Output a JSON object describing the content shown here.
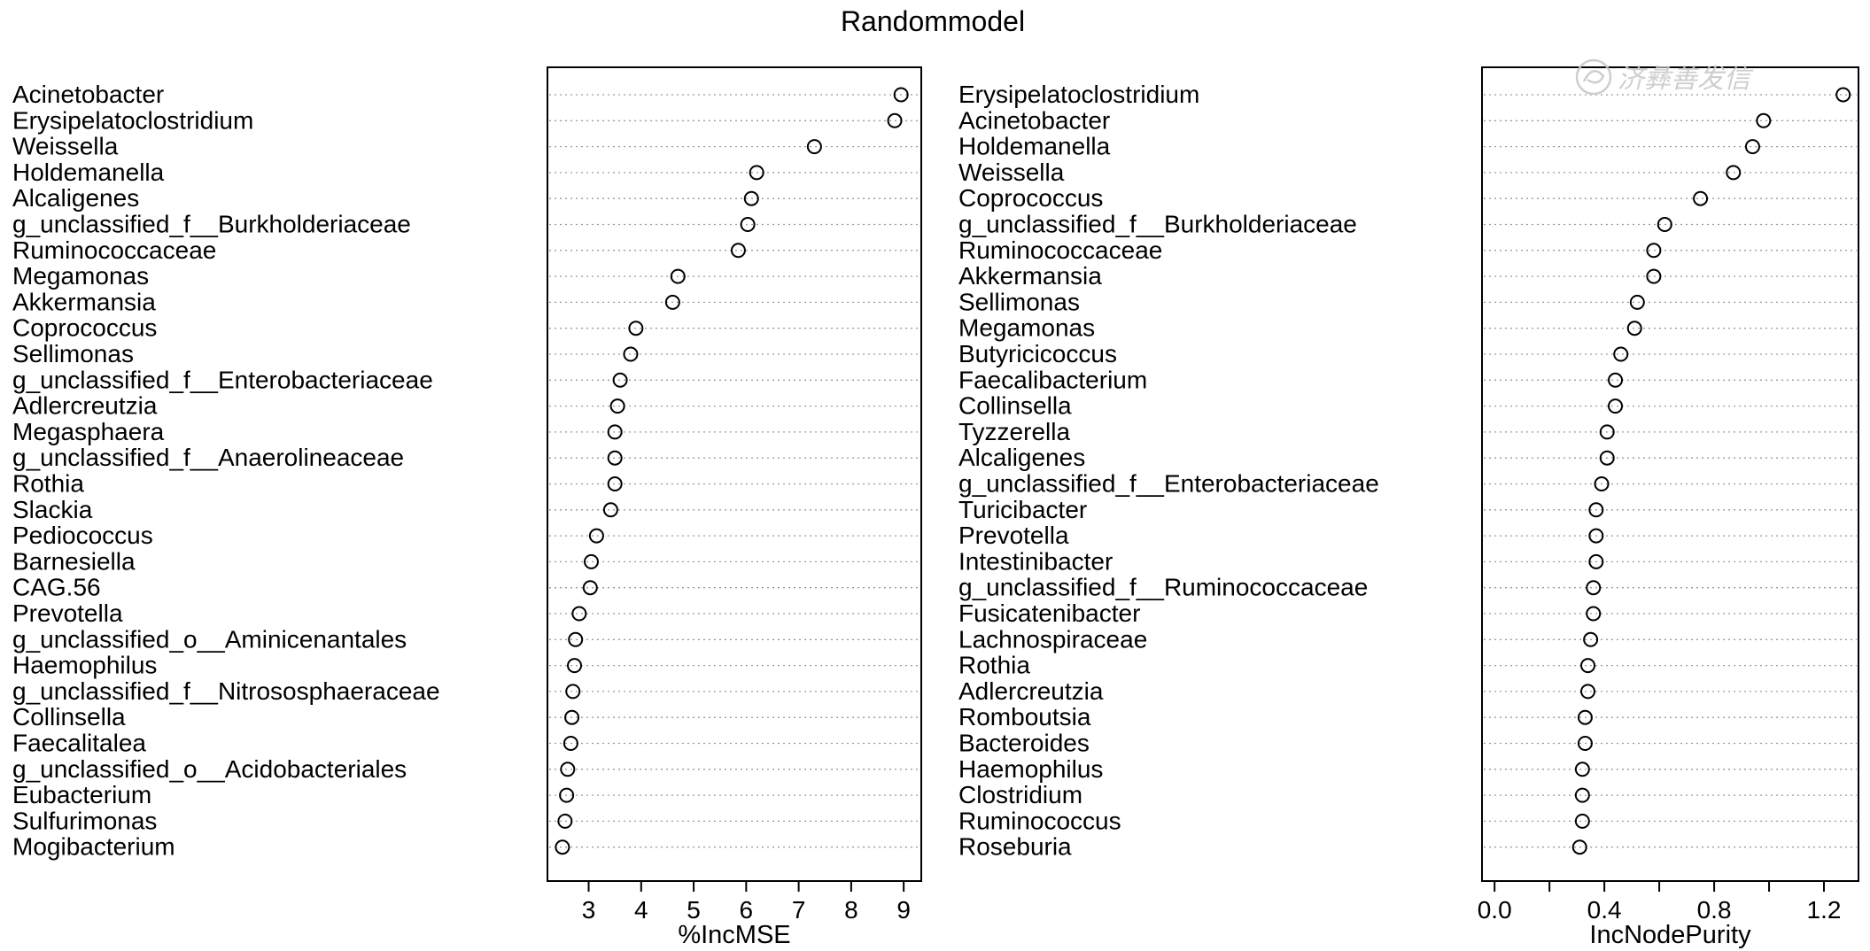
{
  "page": {
    "title": "Randommodel",
    "watermark_text": "济彝善发信"
  },
  "colors": {
    "ink": "#000000",
    "gridline": "#9a9a9a",
    "watermark": "#c9c9c9",
    "background": "#ffffff"
  },
  "chart_data": [
    {
      "type": "scatter",
      "subtype": "dotchart",
      "title": "Randommodel",
      "xlabel": "%IncMSE",
      "ylabel": "",
      "xlim": [
        2.35,
        9.2
      ],
      "xticks": [
        3,
        4,
        5,
        6,
        7,
        8,
        9
      ],
      "xtick_labels": [
        "3",
        "4",
        "5",
        "6",
        "7",
        "8",
        "9"
      ],
      "grid": "horizontal dotted",
      "categories": [
        "Acinetobacter",
        "Erysipelatoclostridium",
        "Weissella",
        "Holdemanella",
        "Alcaligenes",
        "g_unclassified_f__Burkholderiaceae",
        "Ruminococcaceae",
        "Megamonas",
        "Akkermansia",
        "Coprococcus",
        "Sellimonas",
        "g_unclassified_f__Enterobacteriaceae",
        "Adlercreutzia",
        "Megasphaera",
        "g_unclassified_f__Anaerolineaceae",
        "Rothia",
        "Slackia",
        "Pediococcus",
        "Barnesiella",
        "CAG.56",
        "Prevotella",
        "g_unclassified_o__Aminicenantales",
        "Haemophilus",
        "g_unclassified_f__Nitrososphaeraceae",
        "Collinsella",
        "Faecalitalea",
        "g_unclassified_o__Acidobacteriales",
        "Eubacterium",
        "Sulfurimonas",
        "Mogibacterium"
      ],
      "values": [
        8.95,
        8.83,
        7.3,
        6.2,
        6.1,
        6.03,
        5.85,
        4.7,
        4.6,
        3.9,
        3.8,
        3.6,
        3.55,
        3.5,
        3.5,
        3.5,
        3.42,
        3.15,
        3.05,
        3.03,
        2.82,
        2.75,
        2.73,
        2.7,
        2.68,
        2.66,
        2.6,
        2.58,
        2.55,
        2.5
      ]
    },
    {
      "type": "scatter",
      "subtype": "dotchart",
      "title": "",
      "xlabel": "IncNodePurity",
      "ylabel": "",
      "xlim": [
        -0.02,
        1.3
      ],
      "xticks": [
        0.0,
        0.2,
        0.4,
        0.6,
        0.8,
        1.0,
        1.2
      ],
      "xtick_labels": [
        "0.0",
        "",
        "0.4",
        "",
        "0.8",
        "",
        "1.2"
      ],
      "grid": "horizontal dotted",
      "categories": [
        "Erysipelatoclostridium",
        "Acinetobacter",
        "Holdemanella",
        "Weissella",
        "Coprococcus",
        "g_unclassified_f__Burkholderiaceae",
        "Ruminococcaceae",
        "Akkermansia",
        "Sellimonas",
        "Megamonas",
        "Butyricicoccus",
        "Faecalibacterium",
        "Collinsella",
        "Tyzzerella",
        "Alcaligenes",
        "g_unclassified_f__Enterobacteriaceae",
        "Turicibacter",
        "Prevotella",
        "Intestinibacter",
        "g_unclassified_f__Ruminococcaceae",
        "Fusicatenibacter",
        "Lachnospiraceae",
        "Rothia",
        "Adlercreutzia",
        "Romboutsia",
        "Bacteroides",
        "Haemophilus",
        "Clostridium",
        "Ruminococcus",
        "Roseburia"
      ],
      "values": [
        1.27,
        0.98,
        0.94,
        0.87,
        0.75,
        0.62,
        0.58,
        0.58,
        0.52,
        0.51,
        0.46,
        0.44,
        0.44,
        0.41,
        0.41,
        0.39,
        0.37,
        0.37,
        0.37,
        0.36,
        0.36,
        0.35,
        0.34,
        0.34,
        0.33,
        0.33,
        0.32,
        0.32,
        0.32,
        0.31
      ]
    }
  ]
}
